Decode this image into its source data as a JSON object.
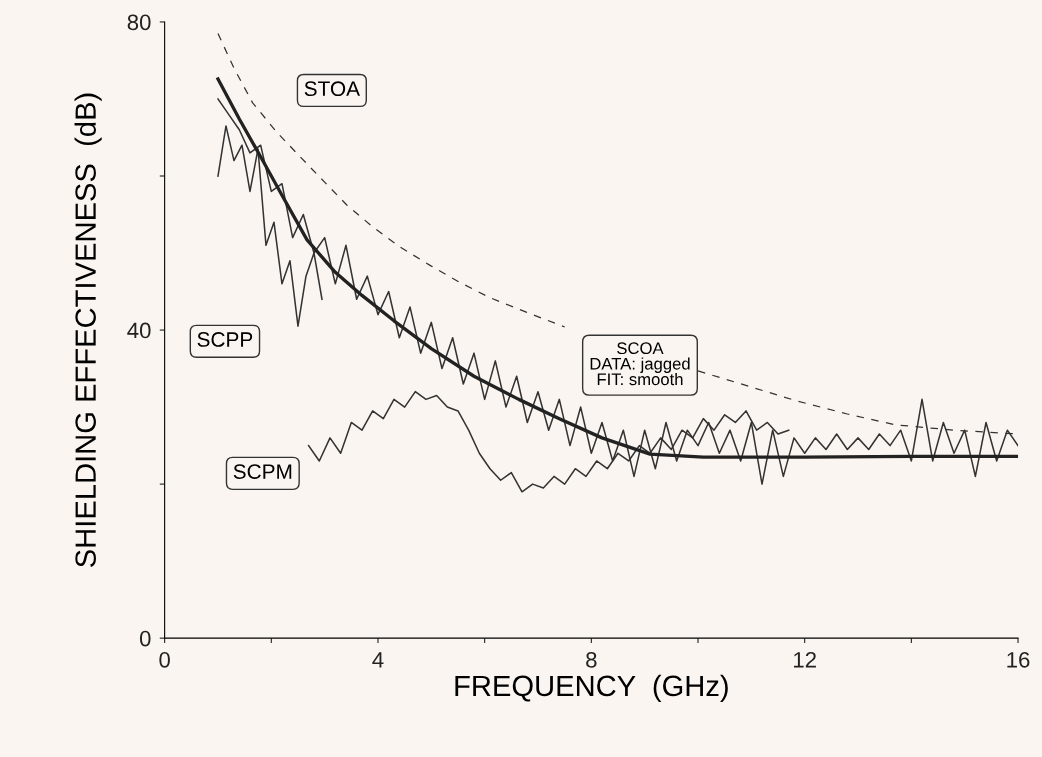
{
  "chart_data": {
    "type": "line",
    "xlabel": "FREQUENCY  (GHz)",
    "ylabel": "SHIELDING EFFECTIVENESS  (dB)",
    "xlim": [
      0,
      16
    ],
    "ylim": [
      0,
      80
    ],
    "xticks": [
      0,
      {
        "value": 2,
        "label": null
      },
      4,
      {
        "value": 6,
        "label": null
      },
      8,
      {
        "value": 10,
        "label": null
      },
      12,
      {
        "value": 14,
        "label": null
      },
      16
    ],
    "yticks": [
      0,
      {
        "value": 20,
        "label": null
      },
      40,
      {
        "value": 60,
        "label": null
      },
      80
    ],
    "grid": false,
    "legend": false,
    "marker": "none",
    "annotations": [
      "SCOA\nDATA: jagged\nFIT: smooth"
    ],
    "series": [
      {
        "name": "STOA",
        "color": "#333333",
        "line_style": "dashed",
        "x": [
          1,
          1.3,
          1.65,
          2.1,
          2.54,
          3.0,
          3.42,
          3.9,
          4.41,
          5.0,
          5.53,
          6.1,
          6.79,
          7.5,
          8.3,
          9.1,
          10,
          11,
          11.85,
          12.8,
          13.7,
          14.8,
          16
        ],
        "values": [
          78.5,
          74,
          69.5,
          65.7,
          62.5,
          59.2,
          56.2,
          53.4,
          50.8,
          48.3,
          46.2,
          44.2,
          42.3,
          40.4,
          null,
          null,
          34.7,
          32.6,
          30.8,
          29.1,
          27.7,
          27,
          26.5
        ]
      },
      {
        "name": "SCPP",
        "color": "#333333",
        "line_style": "solid",
        "x": [
          1,
          1.15,
          1.3,
          1.45,
          1.6,
          1.75,
          1.9,
          2.05,
          2.2,
          2.35,
          2.5,
          2.65,
          2.8,
          2.95
        ],
        "values": [
          60,
          66.5,
          62,
          64,
          58,
          63.5,
          51,
          54,
          46,
          49,
          40.5,
          47,
          50,
          44
        ]
      },
      {
        "name": "SCPM",
        "color": "#333333",
        "line_style": "solid",
        "x": [
          2.7,
          2.9,
          3.1,
          3.3,
          3.5,
          3.7,
          3.9,
          4.1,
          4.3,
          4.5,
          4.7,
          4.9,
          5.1,
          5.3,
          5.5,
          5.7,
          5.9,
          6.1,
          6.3,
          6.5,
          6.7,
          6.9,
          7.1,
          7.3,
          7.5,
          7.7,
          7.9,
          8.1,
          8.3,
          8.5,
          8.7,
          8.9,
          9.1,
          9.3,
          9.5,
          9.7,
          9.9,
          10.1,
          10.3,
          10.5,
          10.7,
          10.9,
          11.1,
          11.3,
          11.5,
          11.7
        ],
        "values": [
          25,
          23,
          26,
          24,
          28,
          27,
          29.5,
          28.5,
          31,
          30,
          32,
          31,
          31.5,
          30,
          29.5,
          27,
          24,
          22,
          20.5,
          21.5,
          19,
          20,
          19.5,
          21,
          20,
          22,
          21,
          23,
          22,
          24,
          23,
          25,
          24,
          26,
          24.5,
          27,
          26,
          28.5,
          27,
          29,
          28,
          29.5,
          27,
          28,
          26.5,
          27
        ]
      },
      {
        "color": "#333333",
        "line_style": "solid",
        "x": [
          1.0,
          1.2,
          1.4,
          1.6,
          1.8,
          2.0,
          2.2,
          2.4,
          2.6,
          2.8,
          3.0,
          3.2,
          3.4,
          3.6,
          3.8,
          4.0,
          4.2,
          4.4,
          4.6,
          4.8,
          5.0,
          5.2,
          5.4,
          5.6,
          5.8,
          6.0,
          6.2,
          6.4,
          6.6,
          6.8,
          7.0,
          7.2,
          7.4,
          7.6,
          7.8,
          8.0,
          8.2,
          8.4,
          8.6,
          8.8,
          9.0,
          9.2,
          9.4,
          9.6,
          9.8,
          10.0,
          10.2,
          10.4,
          10.6,
          10.8,
          11.0,
          11.2,
          11.4,
          11.6,
          11.8,
          12.0,
          12.2,
          12.4,
          12.6,
          12.8,
          13.0,
          13.2,
          13.4,
          13.6,
          13.8,
          14.0,
          14.2,
          14.4,
          14.6,
          14.8,
          15.0,
          15.2,
          15.4,
          15.6,
          15.8,
          16.0
        ],
        "values": [
          70,
          68,
          66,
          63,
          64,
          58,
          59,
          52,
          55,
          50,
          52,
          46,
          51,
          44,
          47,
          42,
          45,
          39,
          43,
          37,
          41,
          35,
          39,
          33,
          37,
          31,
          36,
          30,
          34,
          28,
          32,
          27,
          31,
          25,
          30,
          24,
          28,
          23,
          27,
          21,
          27,
          22,
          28,
          23,
          27,
          25,
          28,
          24,
          27,
          23,
          28,
          20,
          27,
          21,
          26,
          24,
          26,
          24.5,
          26.5,
          24.5,
          26,
          24.5,
          26.5,
          25,
          27,
          23,
          31,
          23,
          28,
          24,
          27,
          21,
          28,
          23,
          27,
          25
        ]
      },
      {
        "color": "#222222",
        "line_style": "solid",
        "x": [
          1,
          1.4,
          1.8,
          2.2,
          2.67,
          3.2,
          3.7,
          4.3,
          5.0,
          5.8,
          6.64,
          7.4,
          8.2,
          9.1,
          10.1,
          12,
          14,
          16
        ],
        "values": [
          72.6,
          67.4,
          62.5,
          57.5,
          51.7,
          47.5,
          44.5,
          41.2,
          37.6,
          34,
          31,
          28.5,
          26,
          23.9,
          23.5,
          23.5,
          23.6,
          23.6
        ]
      }
    ]
  }
}
